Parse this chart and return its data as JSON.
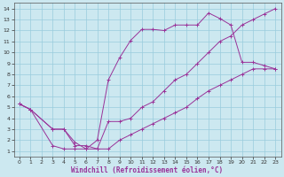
{
  "xlabel": "Windchill (Refroidissement éolien,°C)",
  "bg_color": "#cce8f0",
  "grid_color": "#99ccdd",
  "line_color": "#993399",
  "series": [
    {
      "x": [
        0,
        1,
        3,
        4,
        5,
        6,
        7,
        8,
        9,
        10,
        11,
        12,
        13,
        14,
        15,
        16,
        17,
        18,
        19,
        20,
        21,
        22,
        23
      ],
      "y": [
        5.3,
        4.8,
        1.5,
        1.2,
        1.2,
        1.2,
        2.0,
        7.5,
        9.5,
        11.1,
        12.1,
        12.1,
        12.0,
        12.5,
        12.5,
        12.5,
        13.6,
        13.1,
        12.5,
        9.1,
        9.1,
        8.8,
        8.5
      ]
    },
    {
      "x": [
        0,
        1,
        3,
        4,
        5,
        6,
        7,
        8,
        9,
        10,
        11,
        12,
        13,
        14,
        15,
        16,
        17,
        18,
        19,
        20,
        21,
        22,
        23
      ],
      "y": [
        5.3,
        4.8,
        3.0,
        3.0,
        1.8,
        1.2,
        1.2,
        3.7,
        3.7,
        4.0,
        5.0,
        5.5,
        6.5,
        7.5,
        8.0,
        9.0,
        10.0,
        11.0,
        11.5,
        12.5,
        13.0,
        13.5,
        14.0
      ]
    },
    {
      "x": [
        0,
        1,
        3,
        4,
        5,
        6,
        7,
        8,
        9,
        10,
        11,
        12,
        13,
        14,
        15,
        16,
        17,
        18,
        19,
        20,
        21,
        22,
        23
      ],
      "y": [
        5.3,
        4.8,
        3.0,
        3.0,
        1.5,
        1.5,
        1.2,
        1.2,
        2.0,
        2.5,
        3.0,
        3.5,
        4.0,
        4.5,
        5.0,
        5.8,
        6.5,
        7.0,
        7.5,
        8.0,
        8.5,
        8.5,
        8.5
      ]
    }
  ],
  "xlim": [
    -0.5,
    23.5
  ],
  "ylim": [
    0.5,
    14.5
  ],
  "xticks": [
    0,
    1,
    2,
    3,
    4,
    5,
    6,
    7,
    8,
    9,
    10,
    11,
    12,
    13,
    14,
    15,
    16,
    17,
    18,
    19,
    20,
    21,
    22,
    23
  ],
  "yticks": [
    1,
    2,
    3,
    4,
    5,
    6,
    7,
    8,
    9,
    10,
    11,
    12,
    13,
    14
  ],
  "tick_fontsize": 4.5,
  "xlabel_fontsize": 5.5,
  "marker": "+",
  "markersize": 2.5,
  "linewidth": 0.7
}
